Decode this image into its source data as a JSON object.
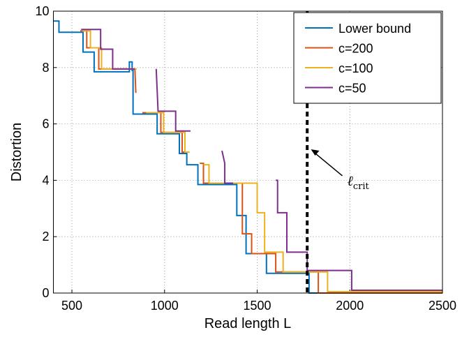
{
  "chart_data": {
    "type": "line",
    "xlabel": "Read length L",
    "ylabel": "Distortion",
    "xlim": [
      400,
      2500
    ],
    "xticks": [
      500,
      1000,
      1500,
      2000,
      2500
    ],
    "ylim": [
      0,
      10
    ],
    "yticks": [
      0,
      2,
      4,
      6,
      8,
      10
    ],
    "grid": true,
    "legend": "upper right",
    "vline": 1770,
    "annotation": {
      "text": "ℓ",
      "subscript": "crit",
      "x": 1790,
      "y": 5.1
    },
    "series": [
      {
        "name": "Lower bound",
        "color": "#0072bd",
        "x": [
          400,
          430,
          430,
          560,
          560,
          620,
          620,
          810,
          810,
          825,
          825,
          830,
          830,
          960,
          960,
          1080,
          1080,
          1120,
          1120,
          1180,
          1180,
          1390,
          1390,
          1440,
          1440,
          1550,
          1550,
          1780,
          1780,
          2500
        ],
        "values": [
          9.65,
          9.65,
          9.25,
          9.25,
          8.55,
          8.55,
          7.85,
          7.85,
          8.2,
          8.2,
          7.9,
          7.9,
          6.35,
          6.35,
          5.65,
          5.65,
          4.95,
          4.95,
          4.55,
          4.55,
          3.85,
          3.85,
          2.75,
          2.75,
          1.4,
          1.4,
          0.7,
          0.7,
          0,
          0
        ]
      },
      {
        "name": "c=200",
        "color": "#d95319",
        "x": [
          545,
          580,
          580,
          645,
          645,
          840,
          845,
          null,
          880,
          980,
          980,
          1095,
          1095,
          1130,
          null,
          1190,
          1210,
          1210,
          1420,
          1420,
          1470,
          1470,
          1600,
          1600,
          1830,
          1830,
          2500
        ],
        "values": [
          9.3,
          9.3,
          8.7,
          8.7,
          7.95,
          7.95,
          7.1,
          null,
          6.4,
          6.4,
          5.7,
          5.7,
          5.0,
          5.0,
          null,
          4.6,
          4.6,
          3.9,
          3.9,
          2.1,
          2.1,
          1.4,
          1.4,
          0.75,
          0.75,
          0,
          0
        ]
      },
      {
        "name": "c=100",
        "color": "#edb120",
        "x": [
          555,
          600,
          600,
          660,
          660,
          850,
          null,
          900,
          995,
          995,
          1110,
          1110,
          1135,
          null,
          1210,
          1240,
          1240,
          1500,
          1500,
          1540,
          1540,
          1640,
          1640,
          1880,
          1880,
          2500
        ],
        "values": [
          9.3,
          9.3,
          8.7,
          8.7,
          7.95,
          7.95,
          null,
          6.4,
          6.4,
          5.7,
          5.7,
          5.0,
          5.0,
          null,
          4.55,
          4.55,
          3.9,
          3.9,
          2.85,
          2.85,
          1.45,
          1.45,
          0.75,
          0.75,
          0.05,
          0.05
        ]
      },
      {
        "name": "c=50",
        "color": "#7e2f8e",
        "x": [
          550,
          655,
          655,
          720,
          720,
          840,
          null,
          955,
          965,
          1060,
          1060,
          1140,
          null,
          1310,
          1325,
          1325,
          1370,
          null,
          1600,
          1610,
          1610,
          1660,
          1660,
          1770,
          1770,
          2010,
          2010,
          2500
        ],
        "values": [
          9.35,
          9.35,
          8.65,
          8.65,
          7.95,
          7.95,
          null,
          7.95,
          6.45,
          6.45,
          5.75,
          5.75,
          null,
          5.05,
          4.6,
          3.9,
          3.9,
          null,
          4.0,
          4.0,
          2.85,
          2.85,
          1.45,
          1.45,
          0.8,
          0.8,
          0.1,
          0.1
        ]
      }
    ]
  }
}
